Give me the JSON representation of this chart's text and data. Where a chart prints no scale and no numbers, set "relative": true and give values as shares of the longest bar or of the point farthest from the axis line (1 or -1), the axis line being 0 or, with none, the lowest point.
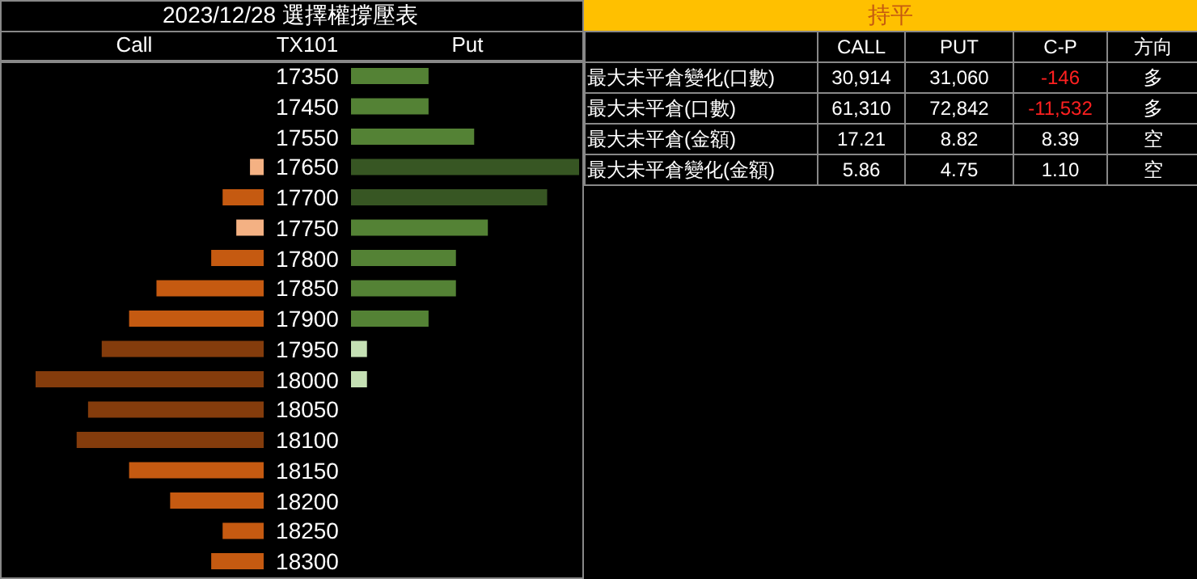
{
  "chart_data": [
    {
      "type": "bar",
      "orientation": "horizontal",
      "relative": true,
      "title": "2023/12/28 選擇權撐壓表",
      "legend": "top",
      "tick_labels": false,
      "categories": [
        "17350",
        "17450",
        "17550",
        "17650",
        "17700",
        "17750",
        "17800",
        "17850",
        "17900",
        "17950",
        "18000",
        "18050",
        "18100",
        "18150",
        "18200",
        "18250",
        "18300"
      ],
      "series": [
        {
          "name": "Call",
          "values": [
            null,
            null,
            null,
            -0.06,
            -0.18,
            -0.12,
            -0.23,
            -0.47,
            -0.59,
            -0.71,
            -1,
            -0.77,
            -0.82,
            -0.59,
            -0.41,
            -0.18,
            -0.23
          ],
          "colors": [
            null,
            null,
            null,
            "#f4b183",
            "#c55a11",
            "#f4b183",
            "#c55a11",
            "#c55a11",
            "#c55a11",
            "#843c0c",
            "#843c0c",
            "#843c0c",
            "#843c0c",
            "#c55a11",
            "#c55a11",
            "#c55a11",
            "#c55a11"
          ]
        }
      ]
    },
    {
      "type": "bar",
      "orientation": "horizontal",
      "relative": true,
      "ylabel": "TX101",
      "legend": "top",
      "categories": [
        "17350",
        "17450",
        "17550",
        "17650",
        "17700",
        "17750",
        "17800",
        "17850",
        "17900",
        "17950",
        "18000",
        "18050",
        "18100",
        "18150",
        "18200",
        "18250",
        "18300"
      ],
      "series": [
        {
          "name": "Put",
          "values": [
            0.34,
            0.34,
            0.54,
            1,
            0.86,
            0.6,
            0.46,
            0.46,
            0.34,
            0.07,
            0.07,
            null,
            null,
            null,
            null,
            null,
            null
          ],
          "colors": [
            "#548235",
            "#548235",
            "#548235",
            "#375623",
            "#375623",
            "#548235",
            "#548235",
            "#548235",
            "#548235",
            "#c5e0b4",
            "#c5e0b4",
            null,
            null,
            null,
            null,
            null,
            null
          ]
        }
      ]
    },
    {
      "type": "other",
      "title": "持平",
      "annotations": [
        "CALL",
        "PUT",
        "C-P",
        "方向",
        "最大未平倉變化(口數)",
        "30,914",
        "31,060",
        "-146",
        "多",
        "最大未平倉(口數)",
        "61,310",
        "72,842",
        "-11,532",
        "多",
        "最大未平倉(金額)",
        "17.21",
        "8.82",
        "8.39",
        "空",
        "最大未平倉變化(金額)",
        "5.86",
        "4.75",
        "1.10",
        "空"
      ]
    }
  ]
}
